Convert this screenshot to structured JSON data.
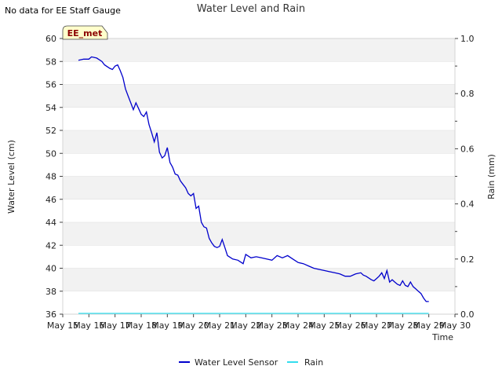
{
  "header": {
    "no_data_note": "No data for EE Staff Gauge",
    "title": "Water Level and Rain"
  },
  "station_badge": "EE_met",
  "colors": {
    "water_level": "#0000cc",
    "rain": "#33ddee",
    "band": "#f2f2f2",
    "badge_fill": "#ffffcc",
    "badge_text": "#8b0000"
  },
  "chart_data": {
    "type": "line",
    "xlabel": "Time",
    "ylabel": "Water Level (cm)",
    "y2label": "Rain (mm)",
    "xlim": [
      15,
      30
    ],
    "ylim": [
      36,
      60
    ],
    "y2lim": [
      0,
      1.0
    ],
    "x_ticks": [
      15,
      16,
      17,
      18,
      19,
      20,
      21,
      22,
      23,
      24,
      25,
      26,
      27,
      28,
      29,
      30
    ],
    "x_tick_labels": [
      "May 15",
      "May 16",
      "May 17",
      "May 18",
      "May 19",
      "May 20",
      "May 21",
      "May 22",
      "May 23",
      "May 24",
      "May 25",
      "May 26",
      "May 27",
      "May 28",
      "May 29",
      "May 30"
    ],
    "y_ticks": [
      36,
      38,
      40,
      42,
      44,
      46,
      48,
      50,
      52,
      54,
      56,
      58,
      60
    ],
    "y2_ticks": [
      "0.0",
      "0.2",
      "0.4",
      "0.6",
      "0.8",
      "1.0"
    ],
    "y2_minor_ticks": [
      0.1,
      0.3,
      0.5,
      0.7,
      0.9
    ],
    "grid": "horizontal bands",
    "legend_position": "bottom-center",
    "series": [
      {
        "name": "Water Level Sensor",
        "axis": "left",
        "x": [
          15.6,
          15.8,
          16.0,
          16.1,
          16.3,
          16.5,
          16.6,
          16.8,
          16.9,
          17.0,
          17.1,
          17.2,
          17.3,
          17.4,
          17.5,
          17.6,
          17.7,
          17.8,
          17.9,
          18.0,
          18.1,
          18.2,
          18.3,
          18.4,
          18.5,
          18.6,
          18.7,
          18.8,
          18.9,
          19.0,
          19.1,
          19.2,
          19.3,
          19.4,
          19.5,
          19.6,
          19.7,
          19.8,
          19.9,
          20.0,
          20.1,
          20.2,
          20.3,
          20.4,
          20.5,
          20.6,
          20.7,
          20.8,
          20.9,
          21.0,
          21.1,
          21.2,
          21.3,
          21.5,
          21.7,
          21.9,
          22.0,
          22.2,
          22.4,
          22.6,
          22.8,
          23.0,
          23.2,
          23.4,
          23.6,
          23.8,
          24.0,
          24.2,
          24.4,
          24.6,
          24.8,
          25.0,
          25.2,
          25.4,
          25.6,
          25.8,
          26.0,
          26.2,
          26.4,
          26.5,
          26.6,
          26.8,
          26.9,
          27.0,
          27.1,
          27.2,
          27.3,
          27.4,
          27.5,
          27.6,
          27.7,
          27.8,
          27.9,
          28.0,
          28.1,
          28.2,
          28.3,
          28.4,
          28.5,
          28.6,
          28.7,
          28.8,
          28.9,
          29.0
        ],
        "values": [
          58.1,
          58.2,
          58.2,
          58.4,
          58.3,
          58.0,
          57.7,
          57.4,
          57.3,
          57.6,
          57.7,
          57.2,
          56.6,
          55.6,
          55.0,
          54.4,
          53.8,
          54.4,
          53.9,
          53.4,
          53.2,
          53.6,
          52.5,
          51.8,
          51.0,
          51.8,
          50.1,
          49.6,
          49.8,
          50.5,
          49.2,
          48.8,
          48.2,
          48.1,
          47.6,
          47.3,
          47.0,
          46.5,
          46.3,
          46.5,
          45.2,
          45.4,
          44.0,
          43.6,
          43.5,
          42.6,
          42.2,
          41.9,
          41.8,
          41.9,
          42.5,
          41.8,
          41.1,
          40.8,
          40.7,
          40.4,
          41.2,
          40.9,
          41.0,
          40.9,
          40.8,
          40.7,
          41.1,
          40.9,
          41.1,
          40.8,
          40.5,
          40.4,
          40.2,
          40.0,
          39.9,
          39.8,
          39.7,
          39.6,
          39.5,
          39.3,
          39.3,
          39.5,
          39.6,
          39.4,
          39.3,
          39.0,
          38.9,
          39.1,
          39.3,
          39.6,
          39.1,
          39.8,
          38.8,
          39.0,
          38.8,
          38.6,
          38.5,
          38.9,
          38.5,
          38.4,
          38.8,
          38.4,
          38.2,
          38.0,
          37.8,
          37.4,
          37.1,
          37.1
        ]
      },
      {
        "name": "Rain",
        "axis": "right",
        "x": [
          15.6,
          29.0
        ],
        "values": [
          0.0,
          0.0
        ]
      }
    ]
  }
}
